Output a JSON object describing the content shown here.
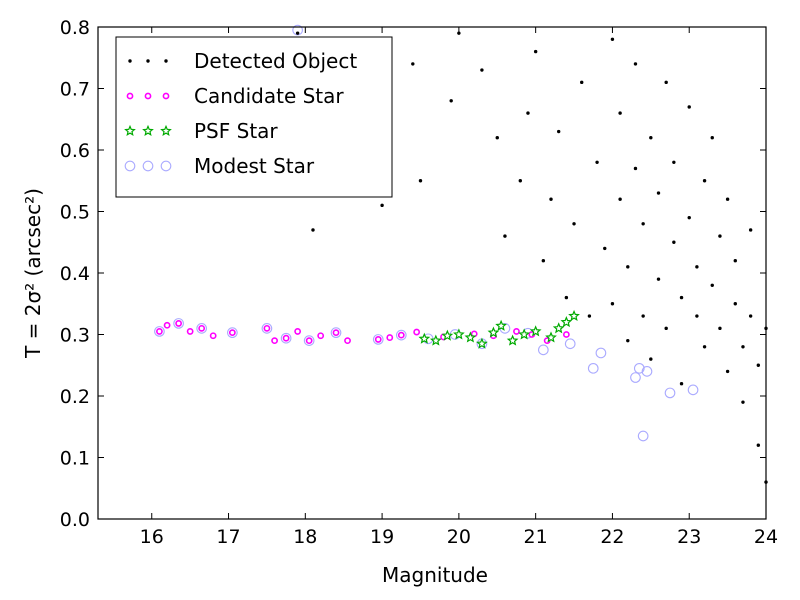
{
  "chart_data": {
    "type": "scatter",
    "xlabel": "Magnitude",
    "ylabel": "T = 2σ² (arcsec²)",
    "xlim": [
      15.3,
      24.0
    ],
    "ylim": [
      0.0,
      0.8
    ],
    "xticks": [
      "16",
      "17",
      "18",
      "19",
      "20",
      "21",
      "22",
      "23",
      "24"
    ],
    "yticks": [
      "0.0",
      "0.1",
      "0.2",
      "0.3",
      "0.4",
      "0.5",
      "0.6",
      "0.7",
      "0.8"
    ],
    "grid": false,
    "legend_position": "top-left",
    "series": [
      {
        "name": "Detected Object",
        "marker": "dot",
        "color": "#000000",
        "points": [
          [
            17.9,
            0.79
          ],
          [
            18.1,
            0.47
          ],
          [
            19.0,
            0.51
          ],
          [
            19.4,
            0.74
          ],
          [
            19.5,
            0.55
          ],
          [
            19.9,
            0.68
          ],
          [
            20.0,
            0.79
          ],
          [
            20.3,
            0.73
          ],
          [
            20.5,
            0.62
          ],
          [
            20.6,
            0.46
          ],
          [
            20.8,
            0.55
          ],
          [
            20.9,
            0.66
          ],
          [
            21.0,
            0.76
          ],
          [
            21.1,
            0.42
          ],
          [
            21.2,
            0.52
          ],
          [
            21.3,
            0.63
          ],
          [
            21.4,
            0.36
          ],
          [
            21.5,
            0.48
          ],
          [
            21.6,
            0.71
          ],
          [
            21.7,
            0.33
          ],
          [
            21.8,
            0.58
          ],
          [
            21.9,
            0.44
          ],
          [
            22.0,
            0.78
          ],
          [
            22.0,
            0.35
          ],
          [
            22.1,
            0.52
          ],
          [
            22.1,
            0.66
          ],
          [
            22.2,
            0.29
          ],
          [
            22.2,
            0.41
          ],
          [
            22.3,
            0.57
          ],
          [
            22.3,
            0.74
          ],
          [
            22.4,
            0.33
          ],
          [
            22.4,
            0.48
          ],
          [
            22.5,
            0.62
          ],
          [
            22.5,
            0.26
          ],
          [
            22.6,
            0.39
          ],
          [
            22.6,
            0.53
          ],
          [
            22.7,
            0.71
          ],
          [
            22.7,
            0.31
          ],
          [
            22.8,
            0.45
          ],
          [
            22.8,
            0.58
          ],
          [
            22.9,
            0.36
          ],
          [
            22.9,
            0.22
          ],
          [
            23.0,
            0.49
          ],
          [
            23.0,
            0.67
          ],
          [
            23.1,
            0.33
          ],
          [
            23.1,
            0.41
          ],
          [
            23.2,
            0.55
          ],
          [
            23.2,
            0.28
          ],
          [
            23.3,
            0.38
          ],
          [
            23.3,
            0.62
          ],
          [
            23.4,
            0.31
          ],
          [
            23.4,
            0.46
          ],
          [
            23.5,
            0.24
          ],
          [
            23.5,
            0.52
          ],
          [
            23.6,
            0.35
          ],
          [
            23.6,
            0.42
          ],
          [
            23.7,
            0.28
          ],
          [
            23.7,
            0.19
          ],
          [
            23.8,
            0.33
          ],
          [
            23.8,
            0.47
          ],
          [
            23.9,
            0.25
          ],
          [
            23.9,
            0.12
          ],
          [
            24.0,
            0.31
          ],
          [
            24.0,
            0.06
          ]
        ]
      },
      {
        "name": "Candidate Star",
        "marker": "circle",
        "color": "#ff00ff",
        "points": [
          [
            16.1,
            0.305
          ],
          [
            16.2,
            0.315
          ],
          [
            16.35,
            0.318
          ],
          [
            16.5,
            0.305
          ],
          [
            16.65,
            0.31
          ],
          [
            16.8,
            0.298
          ],
          [
            17.05,
            0.303
          ],
          [
            17.5,
            0.31
          ],
          [
            17.6,
            0.29
          ],
          [
            17.75,
            0.294
          ],
          [
            17.9,
            0.305
          ],
          [
            18.05,
            0.29
          ],
          [
            18.2,
            0.298
          ],
          [
            18.4,
            0.303
          ],
          [
            18.55,
            0.29
          ],
          [
            18.95,
            0.292
          ],
          [
            19.1,
            0.295
          ],
          [
            19.25,
            0.299
          ],
          [
            19.45,
            0.304
          ],
          [
            19.8,
            0.296
          ],
          [
            20.2,
            0.301
          ],
          [
            20.45,
            0.298
          ],
          [
            20.75,
            0.305
          ],
          [
            20.95,
            0.3
          ],
          [
            21.15,
            0.29
          ],
          [
            21.4,
            0.3
          ]
        ]
      },
      {
        "name": "PSF Star",
        "marker": "star",
        "color": "#00aa00",
        "points": [
          [
            19.55,
            0.293
          ],
          [
            19.7,
            0.29
          ],
          [
            19.85,
            0.298
          ],
          [
            20.0,
            0.3
          ],
          [
            20.15,
            0.295
          ],
          [
            20.3,
            0.285
          ],
          [
            20.45,
            0.303
          ],
          [
            20.55,
            0.314
          ],
          [
            20.7,
            0.29
          ],
          [
            20.85,
            0.3
          ],
          [
            21.0,
            0.305
          ],
          [
            21.2,
            0.295
          ],
          [
            21.3,
            0.31
          ],
          [
            21.4,
            0.32
          ],
          [
            21.5,
            0.33
          ]
        ]
      },
      {
        "name": "Modest Star",
        "marker": "ring",
        "color": "#aaaaff",
        "points": [
          [
            16.1,
            0.305
          ],
          [
            16.35,
            0.318
          ],
          [
            16.65,
            0.31
          ],
          [
            17.05,
            0.303
          ],
          [
            17.5,
            0.31
          ],
          [
            17.75,
            0.294
          ],
          [
            18.05,
            0.29
          ],
          [
            18.4,
            0.303
          ],
          [
            18.95,
            0.292
          ],
          [
            19.25,
            0.299
          ],
          [
            19.6,
            0.293
          ],
          [
            19.95,
            0.3
          ],
          [
            20.3,
            0.285
          ],
          [
            20.6,
            0.31
          ],
          [
            20.9,
            0.302
          ],
          [
            21.1,
            0.275
          ],
          [
            21.45,
            0.285
          ],
          [
            21.75,
            0.245
          ],
          [
            21.85,
            0.27
          ],
          [
            22.3,
            0.23
          ],
          [
            22.35,
            0.245
          ],
          [
            22.45,
            0.24
          ],
          [
            22.75,
            0.205
          ],
          [
            23.05,
            0.21
          ],
          [
            22.4,
            0.135
          ],
          [
            17.9,
            0.795
          ]
        ]
      }
    ]
  }
}
